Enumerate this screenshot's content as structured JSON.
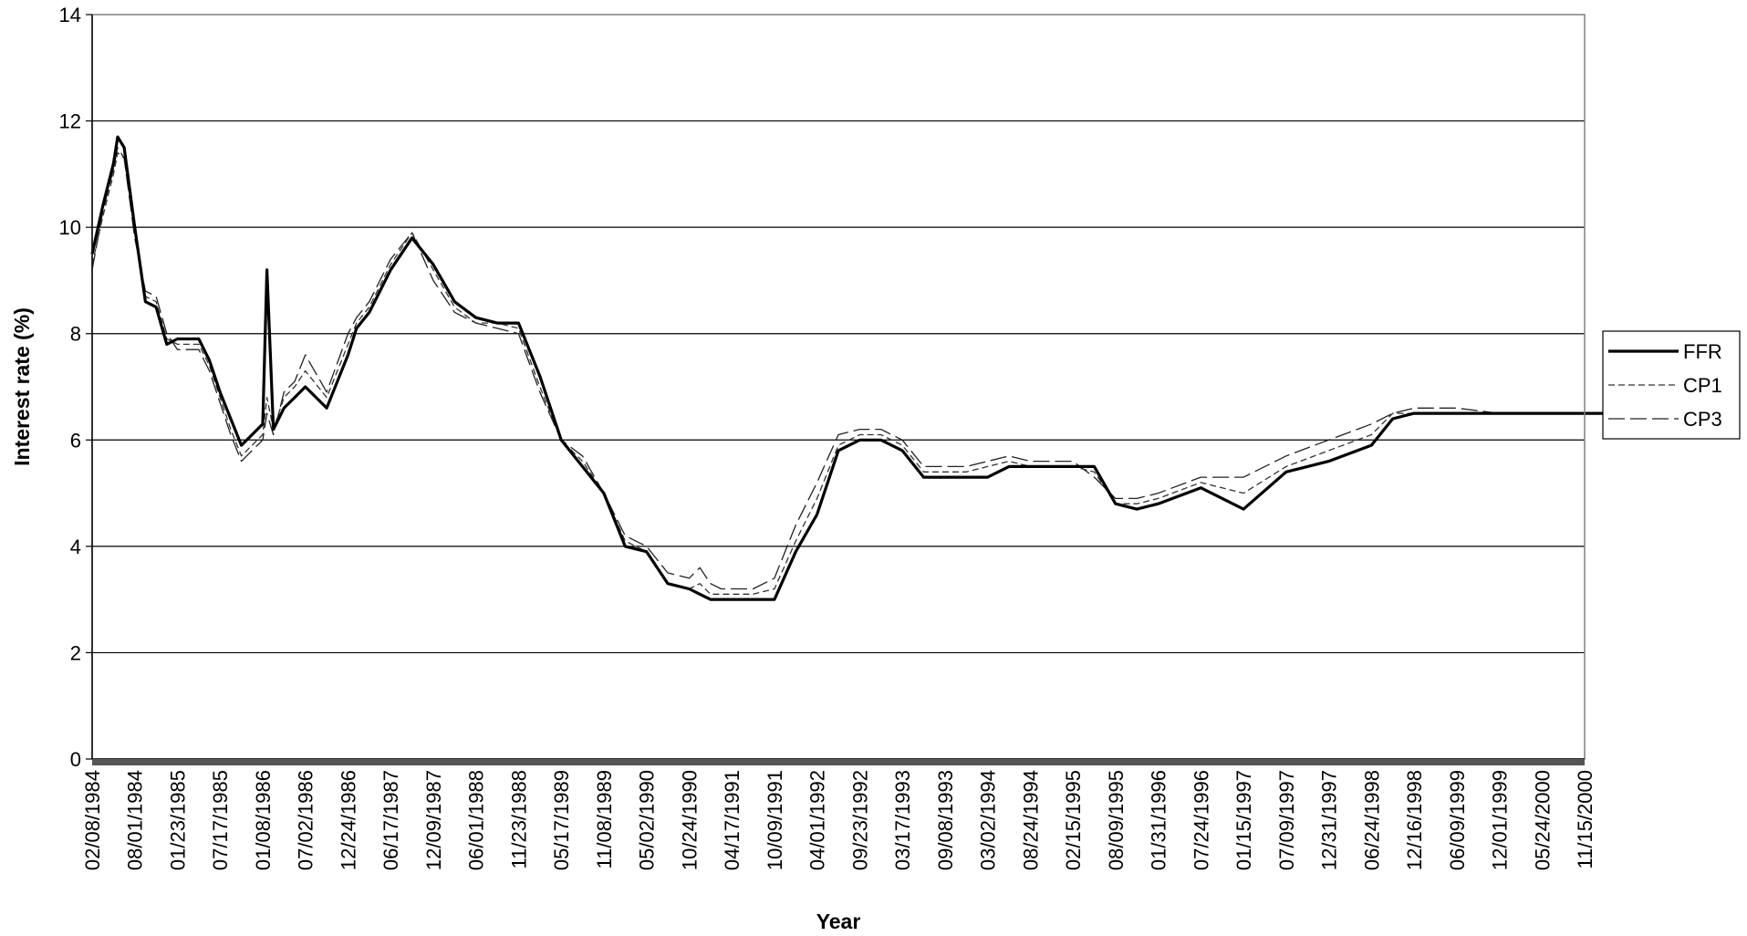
{
  "chart_data": {
    "type": "line",
    "title": "",
    "xlabel": "Year",
    "ylabel": "Interest rate (%)",
    "ylim": [
      0,
      14
    ],
    "yticks": [
      0,
      2,
      4,
      6,
      8,
      10,
      12,
      14
    ],
    "grid": "horizontal",
    "legend_position": "right",
    "x_tick_labels": [
      "02/08/1984",
      "08/01/1984",
      "01/23/1985",
      "07/17/1985",
      "01/08/1986",
      "07/02/1986",
      "12/24/1986",
      "06/17/1987",
      "12/09/1987",
      "06/01/1988",
      "11/23/1988",
      "05/17/1989",
      "11/08/1989",
      "05/02/1990",
      "10/24/1990",
      "04/17/1991",
      "10/09/1991",
      "04/01/1992",
      "09/23/1992",
      "03/17/1993",
      "09/08/1993",
      "03/02/1994",
      "08/24/1994",
      "02/15/1995",
      "08/09/1995",
      "01/31/1996",
      "07/24/1996",
      "01/15/1997",
      "07/09/1997",
      "12/31/1997",
      "06/24/1998",
      "12/16/1998",
      "06/09/1999",
      "12/01/1999",
      "05/24/2000",
      "11/15/2000"
    ],
    "x": [
      0,
      0.25,
      0.5,
      0.6,
      0.75,
      1,
      1.25,
      1.5,
      1.75,
      2,
      2.25,
      2.5,
      2.75,
      3,
      3.25,
      3.5,
      3.75,
      4,
      4.1,
      4.25,
      4.5,
      4.75,
      5,
      5.5,
      6,
      6.2,
      6.5,
      7,
      7.5,
      8,
      8.5,
      9,
      9.5,
      10,
      10.5,
      11,
      11.5,
      12,
      12.5,
      13,
      13.5,
      14,
      14.25,
      14.5,
      14.75,
      15,
      15.5,
      16,
      16.5,
      17,
      17.5,
      18,
      18.5,
      19,
      19.5,
      20,
      20.5,
      21,
      21.5,
      22,
      22.5,
      23,
      23.5,
      24,
      24.5,
      25,
      26,
      27,
      28,
      29,
      30,
      30.5,
      31,
      31.5,
      32,
      33,
      33.5,
      34,
      34.5,
      35,
      35.5
    ],
    "series": [
      {
        "name": "FFR",
        "style": "solid-thick",
        "values": [
          9.5,
          10.4,
          11.2,
          11.7,
          11.5,
          10.0,
          8.6,
          8.5,
          7.8,
          7.9,
          7.9,
          7.9,
          7.5,
          6.9,
          6.4,
          5.9,
          6.1,
          6.3,
          9.2,
          6.2,
          6.6,
          6.8,
          7.0,
          6.6,
          7.6,
          8.1,
          8.4,
          9.2,
          9.8,
          9.3,
          8.6,
          8.3,
          8.2,
          8.2,
          7.2,
          6.0,
          5.5,
          5.0,
          4.0,
          3.9,
          3.3,
          3.2,
          3.1,
          3.0,
          3.0,
          3.0,
          3.0,
          3.0,
          3.9,
          4.6,
          5.8,
          6.0,
          6.0,
          5.8,
          5.3,
          5.3,
          5.3,
          5.3,
          5.5,
          5.5,
          5.5,
          5.5,
          5.5,
          4.8,
          4.7,
          4.8,
          5.1,
          4.7,
          5.4,
          5.6,
          5.9,
          6.4,
          6.5,
          6.5,
          6.5,
          6.5,
          6.5,
          6.5,
          6.5,
          6.5,
          6.5
        ]
      },
      {
        "name": "CP1",
        "style": "dashed",
        "values": [
          9.3,
          10.2,
          11.0,
          11.4,
          11.3,
          9.9,
          8.7,
          8.6,
          7.9,
          7.8,
          7.8,
          7.8,
          7.4,
          6.8,
          6.2,
          5.7,
          5.9,
          6.1,
          6.8,
          6.2,
          6.8,
          7.0,
          7.3,
          6.8,
          7.8,
          8.2,
          8.5,
          9.3,
          9.9,
          9.2,
          8.5,
          8.2,
          8.2,
          8.1,
          7.0,
          6.0,
          5.6,
          5.0,
          4.1,
          3.9,
          3.3,
          3.2,
          3.3,
          3.1,
          3.1,
          3.1,
          3.1,
          3.2,
          4.1,
          4.9,
          5.9,
          6.1,
          6.1,
          5.9,
          5.4,
          5.4,
          5.4,
          5.5,
          5.6,
          5.5,
          5.5,
          5.5,
          5.4,
          4.8,
          4.8,
          4.9,
          5.2,
          5.0,
          5.5,
          5.8,
          6.1,
          6.5,
          6.5,
          6.5,
          6.5,
          6.5,
          6.5,
          6.5,
          6.5,
          6.5,
          6.5
        ]
      },
      {
        "name": "CP3",
        "style": "long-dash",
        "values": [
          9.2,
          10.3,
          11.1,
          11.5,
          11.3,
          9.8,
          8.8,
          8.7,
          8.0,
          7.7,
          7.7,
          7.7,
          7.3,
          6.7,
          6.1,
          5.6,
          5.8,
          6.0,
          6.5,
          6.1,
          6.9,
          7.1,
          7.6,
          6.9,
          8.0,
          8.3,
          8.6,
          9.4,
          9.9,
          9.0,
          8.4,
          8.2,
          8.1,
          8.0,
          6.9,
          6.0,
          5.7,
          5.0,
          4.2,
          4.0,
          3.5,
          3.4,
          3.6,
          3.3,
          3.2,
          3.2,
          3.2,
          3.4,
          4.4,
          5.2,
          6.1,
          6.2,
          6.2,
          6.0,
          5.5,
          5.5,
          5.5,
          5.6,
          5.7,
          5.6,
          5.6,
          5.6,
          5.3,
          4.9,
          4.9,
          5.0,
          5.3,
          5.3,
          5.7,
          6.0,
          6.3,
          6.5,
          6.6,
          6.6,
          6.6,
          6.5,
          6.5,
          6.5,
          6.5,
          6.5,
          6.5
        ]
      }
    ]
  }
}
